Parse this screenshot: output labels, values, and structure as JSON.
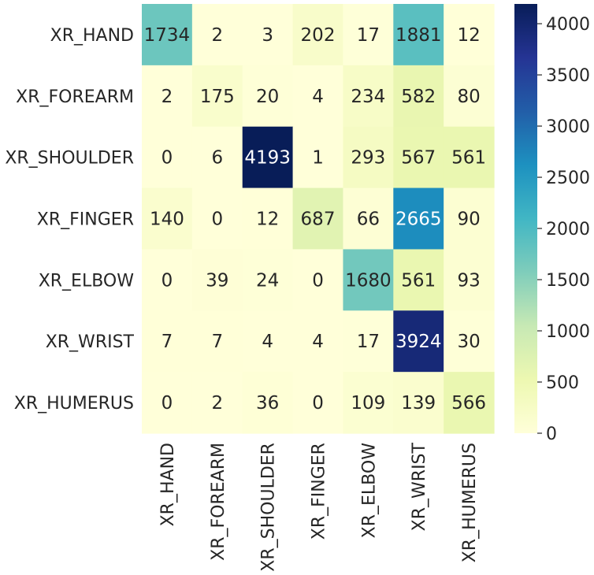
{
  "chart_data": {
    "type": "heatmap",
    "title": "",
    "xlabel": "",
    "ylabel": "",
    "rows": [
      "XR_HAND",
      "XR_FOREARM",
      "XR_SHOULDER",
      "XR_FINGER",
      "XR_ELBOW",
      "XR_WRIST",
      "XR_HUMERUS"
    ],
    "columns": [
      "XR_HAND",
      "XR_FOREARM",
      "XR_SHOULDER",
      "XR_FINGER",
      "XR_ELBOW",
      "XR_WRIST",
      "XR_HUMERUS"
    ],
    "values": [
      [
        1734,
        2,
        3,
        202,
        17,
        1881,
        12
      ],
      [
        2,
        175,
        20,
        4,
        234,
        582,
        80
      ],
      [
        0,
        6,
        4193,
        1,
        293,
        567,
        561
      ],
      [
        140,
        0,
        12,
        687,
        66,
        2665,
        90
      ],
      [
        0,
        39,
        24,
        0,
        1680,
        561,
        93
      ],
      [
        7,
        7,
        4,
        4,
        17,
        3924,
        30
      ],
      [
        0,
        2,
        36,
        0,
        109,
        139,
        566
      ]
    ],
    "colorbar": {
      "colormap": "YlGnBu",
      "range": [
        0,
        4193
      ],
      "ticks": [
        0,
        500,
        1000,
        1500,
        2000,
        2500,
        3000,
        3500,
        4000
      ]
    },
    "colors": {
      "dark_text": "#262626",
      "light_text": "#ffffff"
    }
  }
}
